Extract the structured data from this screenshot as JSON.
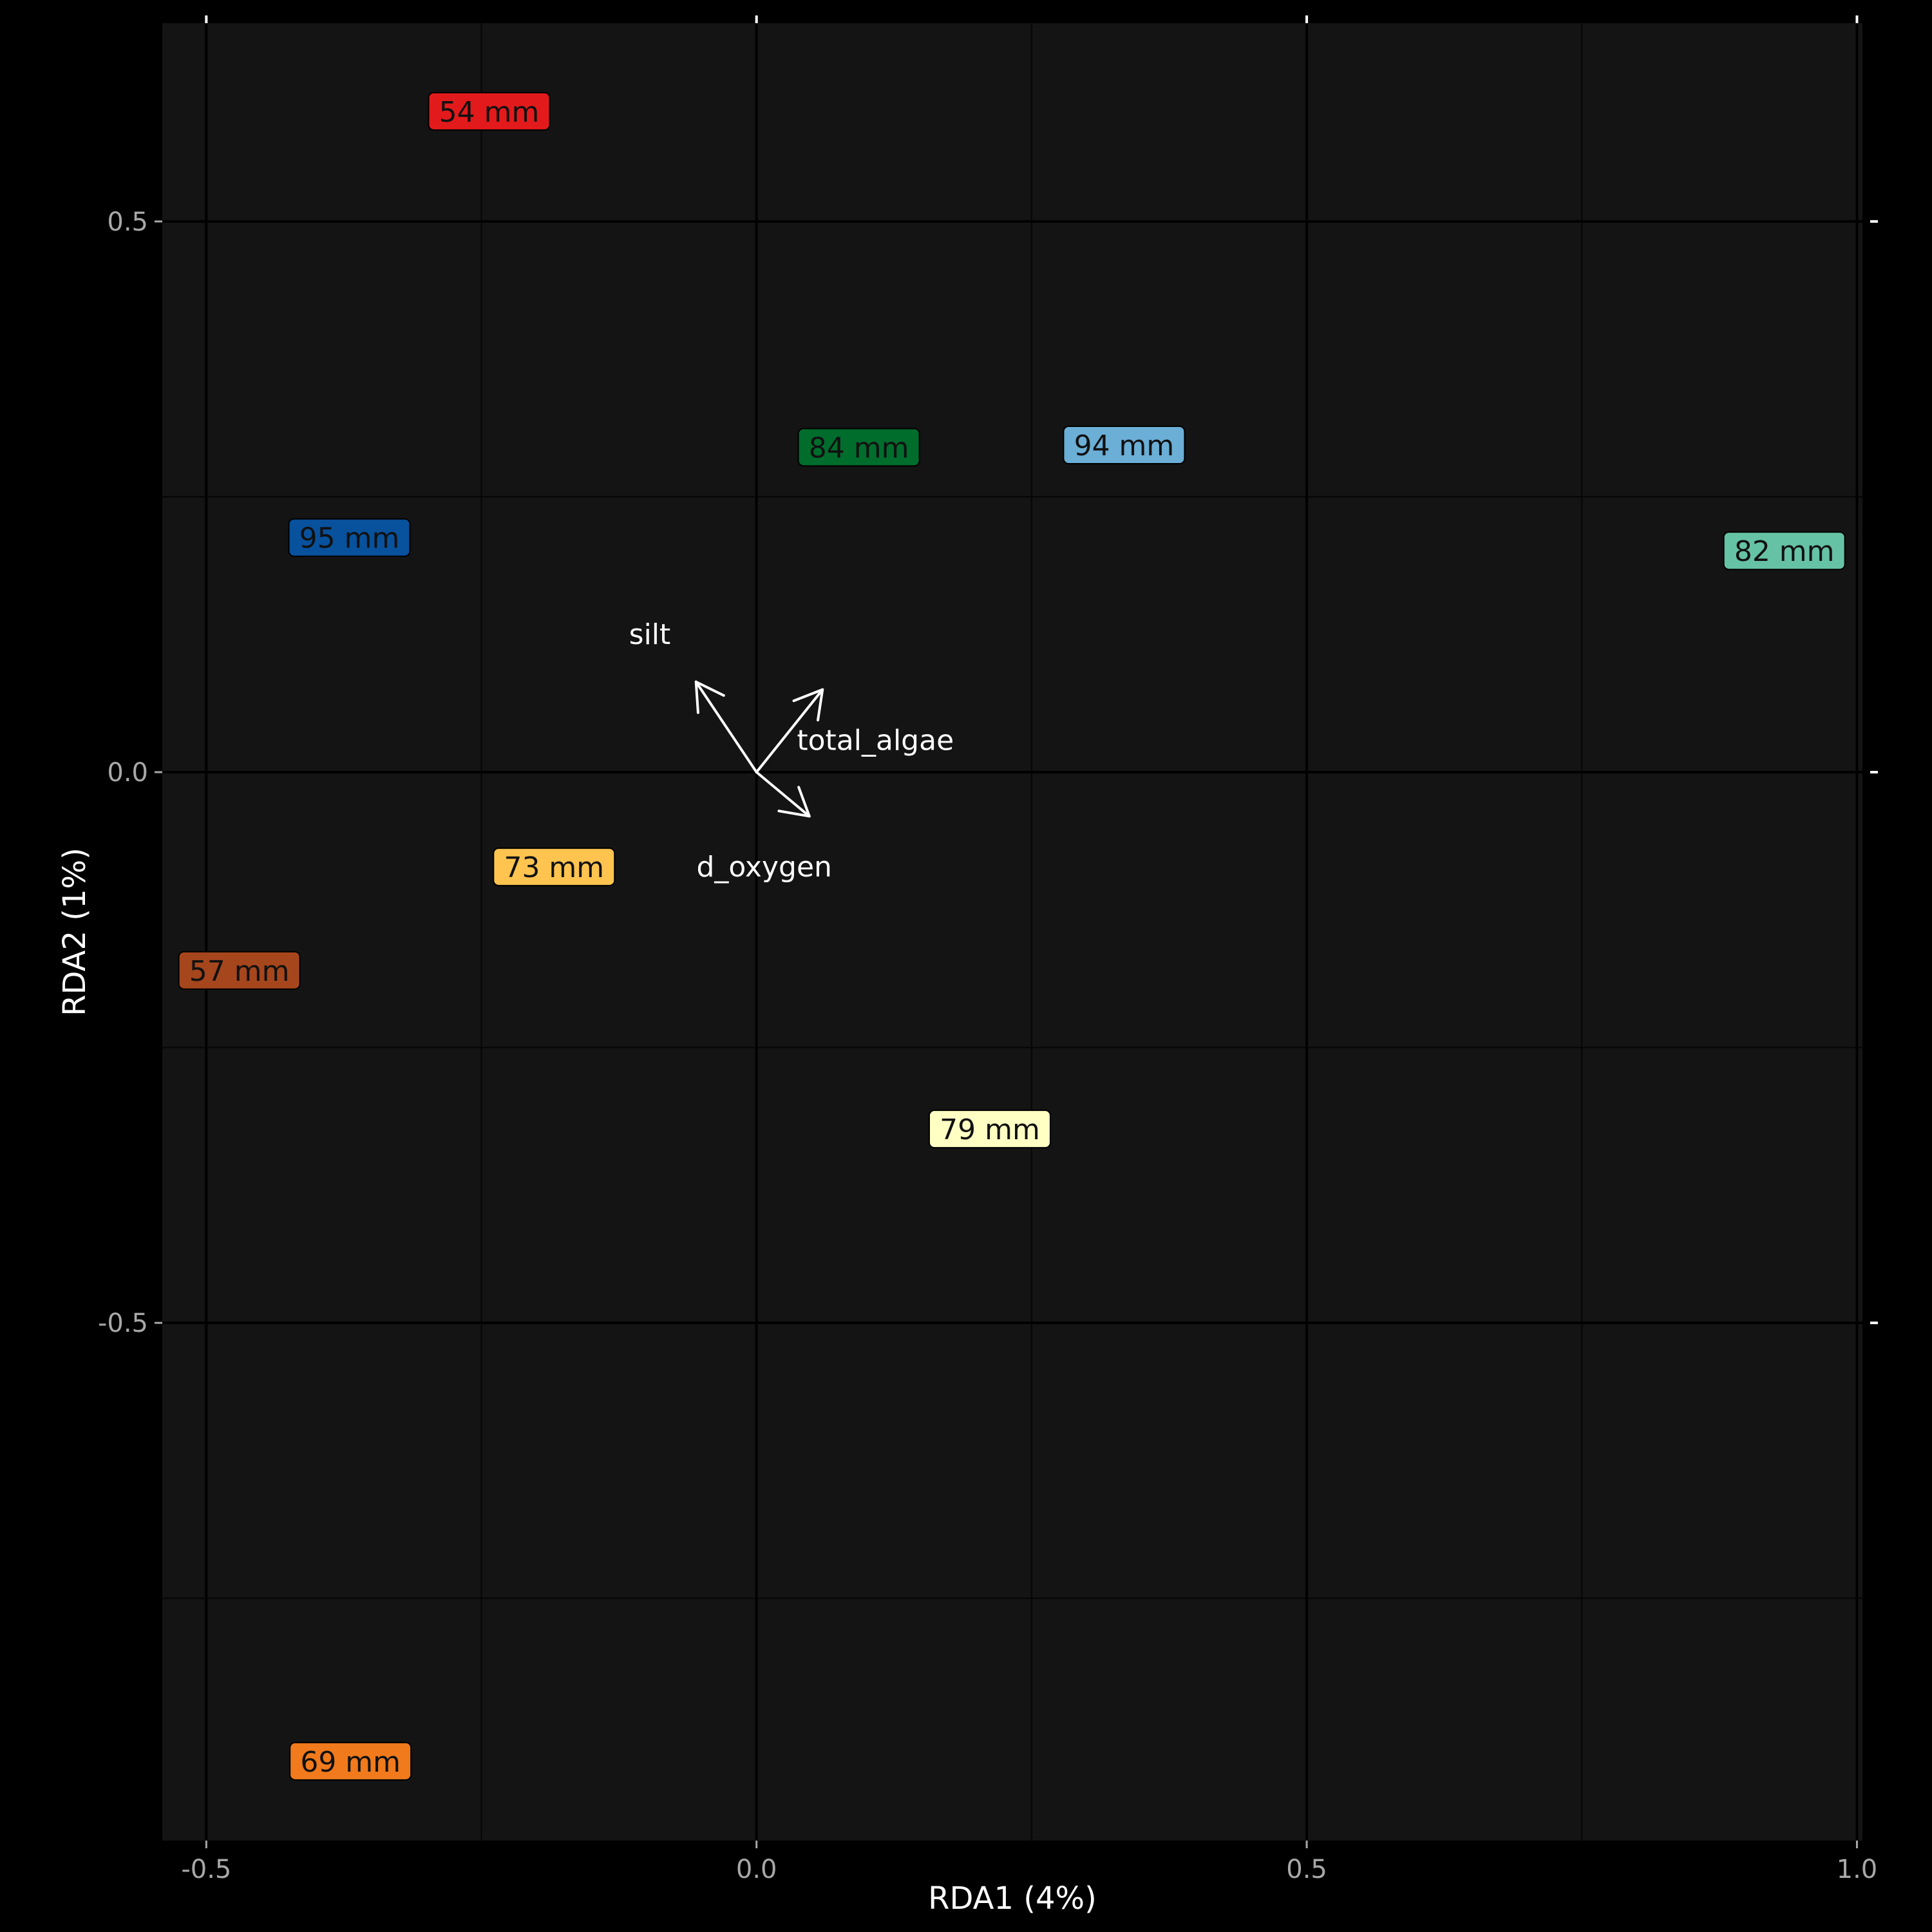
{
  "chart_data": {
    "type": "scatter",
    "xlabel": "RDA1 (4%)",
    "ylabel": "RDA2 (1%)",
    "xlim": [
      -0.54,
      1.005
    ],
    "ylim": [
      -0.97,
      0.68
    ],
    "x_ticks": [
      -0.5,
      0.0,
      0.5,
      1.0
    ],
    "x_tick_labels": [
      "-0.5",
      "0.0",
      "0.5",
      "1.0"
    ],
    "y_ticks": [
      -0.5,
      0.0,
      0.5
    ],
    "y_tick_labels": [
      "-0.5",
      "0.0",
      "0.5"
    ],
    "x_minor": [
      -0.25,
      0.25,
      0.75
    ],
    "y_minor": [
      -0.75,
      -0.25,
      0.25
    ],
    "grid": true,
    "background": "#141414",
    "grid_major_color": "#000000",
    "grid_minor_color": "#050505",
    "points": [
      {
        "label": "54 mm",
        "x": -0.243,
        "y": 0.6,
        "color": "#e31a1c"
      },
      {
        "label": "84 mm",
        "x": 0.093,
        "y": 0.295,
        "color": "#006d2c"
      },
      {
        "label": "94 mm",
        "x": 0.334,
        "y": 0.297,
        "color": "#6baed6"
      },
      {
        "label": "95 mm",
        "x": -0.37,
        "y": 0.213,
        "color": "#08519c"
      },
      {
        "label": "82 mm",
        "x": 0.934,
        "y": 0.201,
        "color": "#66c2a4"
      },
      {
        "label": "73 mm",
        "x": -0.184,
        "y": -0.086,
        "color": "#fec44f"
      },
      {
        "label": "57 mm",
        "x": -0.47,
        "y": -0.18,
        "color": "#a6461c"
      },
      {
        "label": "79 mm",
        "x": 0.212,
        "y": -0.324,
        "color": "#ffffc4"
      },
      {
        "label": "69 mm",
        "x": -0.369,
        "y": -0.898,
        "color": "#f07a1c"
      }
    ],
    "arrows": [
      {
        "name": "silt",
        "x": -0.055,
        "y": 0.082
      },
      {
        "name": "total_algae",
        "x": 0.06,
        "y": 0.075
      },
      {
        "name": "d_oxygen",
        "x": 0.048,
        "y": -0.04
      }
    ],
    "arrow_labels": [
      {
        "text": "silt",
        "x": -0.097,
        "y": 0.125,
        "anchor": "middle"
      },
      {
        "text": "total_algae",
        "x": 0.108,
        "y": 0.029,
        "anchor": "middle"
      },
      {
        "text": "d_oxygen",
        "x": 0.007,
        "y": -0.086,
        "anchor": "middle"
      }
    ],
    "arrow_color": "#ffffff"
  }
}
